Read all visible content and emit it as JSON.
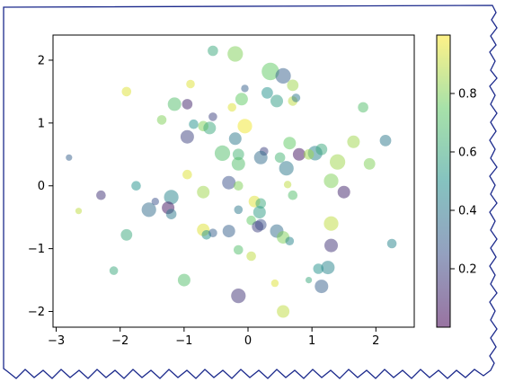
{
  "chart_data": {
    "type": "scatter",
    "title": "",
    "xlabel": "",
    "ylabel": "",
    "xlim": [
      -3.05,
      2.6
    ],
    "ylim": [
      -2.25,
      2.4
    ],
    "xticks": [
      -3,
      -2,
      -1,
      0,
      1,
      2
    ],
    "yticks": [
      -2,
      -1,
      0,
      1,
      2
    ],
    "grid": false,
    "alpha": 0.5,
    "colormap": "viridis",
    "colorbar": {
      "ticks": [
        0.2,
        0.4,
        0.6,
        0.8
      ],
      "range": [
        0.0,
        1.0
      ],
      "stops": [
        "#440154",
        "#3b528b",
        "#21918c",
        "#5ec962",
        "#fde725"
      ]
    },
    "points": [
      {
        "x": -0.55,
        "y": 2.15,
        "size": 0.35,
        "c": 0.6
      },
      {
        "x": -0.2,
        "y": 2.1,
        "size": 0.6,
        "c": 0.8
      },
      {
        "x": 0.35,
        "y": 1.82,
        "size": 0.7,
        "c": 0.75
      },
      {
        "x": 0.55,
        "y": 1.75,
        "size": 0.6,
        "c": 0.3
      },
      {
        "x": 0.7,
        "y": 1.6,
        "size": 0.4,
        "c": 0.85
      },
      {
        "x": -1.9,
        "y": 1.5,
        "size": 0.3,
        "c": 0.95
      },
      {
        "x": -0.9,
        "y": 1.62,
        "size": 0.25,
        "c": 0.95
      },
      {
        "x": -0.05,
        "y": 1.55,
        "size": 0.2,
        "c": 0.3
      },
      {
        "x": 0.3,
        "y": 1.48,
        "size": 0.4,
        "c": 0.5
      },
      {
        "x": 0.45,
        "y": 1.35,
        "size": 0.45,
        "c": 0.55
      },
      {
        "x": 0.7,
        "y": 1.35,
        "size": 0.3,
        "c": 0.9
      },
      {
        "x": 0.75,
        "y": 1.4,
        "size": 0.25,
        "c": 0.4
      },
      {
        "x": -0.1,
        "y": 1.38,
        "size": 0.45,
        "c": 0.75
      },
      {
        "x": -0.25,
        "y": 1.25,
        "size": 0.25,
        "c": 0.95
      },
      {
        "x": -1.15,
        "y": 1.3,
        "size": 0.5,
        "c": 0.7
      },
      {
        "x": -0.95,
        "y": 1.3,
        "size": 0.35,
        "c": 0.1
      },
      {
        "x": 1.8,
        "y": 1.25,
        "size": 0.35,
        "c": 0.7
      },
      {
        "x": -1.35,
        "y": 1.05,
        "size": 0.3,
        "c": 0.8
      },
      {
        "x": -0.55,
        "y": 1.1,
        "size": 0.25,
        "c": 0.2
      },
      {
        "x": -0.85,
        "y": 0.98,
        "size": 0.3,
        "c": 0.5
      },
      {
        "x": -0.7,
        "y": 0.95,
        "size": 0.35,
        "c": 0.8
      },
      {
        "x": -0.6,
        "y": 0.92,
        "size": 0.45,
        "c": 0.6
      },
      {
        "x": -0.05,
        "y": 0.95,
        "size": 0.55,
        "c": 0.98
      },
      {
        "x": -0.2,
        "y": 0.75,
        "size": 0.45,
        "c": 0.4
      },
      {
        "x": -0.95,
        "y": 0.78,
        "size": 0.5,
        "c": 0.2
      },
      {
        "x": 0.65,
        "y": 0.68,
        "size": 0.45,
        "c": 0.75
      },
      {
        "x": 1.65,
        "y": 0.7,
        "size": 0.45,
        "c": 0.85
      },
      {
        "x": 2.15,
        "y": 0.72,
        "size": 0.4,
        "c": 0.4
      },
      {
        "x": -0.4,
        "y": 0.52,
        "size": 0.6,
        "c": 0.7
      },
      {
        "x": -0.15,
        "y": 0.5,
        "size": 0.4,
        "c": 0.65
      },
      {
        "x": 0.25,
        "y": 0.55,
        "size": 0.25,
        "c": 0.2
      },
      {
        "x": 0.2,
        "y": 0.45,
        "size": 0.5,
        "c": 0.35
      },
      {
        "x": 0.5,
        "y": 0.45,
        "size": 0.35,
        "c": 0.65
      },
      {
        "x": 0.8,
        "y": 0.5,
        "size": 0.45,
        "c": 0.05
      },
      {
        "x": 1.05,
        "y": 0.52,
        "size": 0.55,
        "c": 0.45
      },
      {
        "x": 1.15,
        "y": 0.58,
        "size": 0.4,
        "c": 0.6
      },
      {
        "x": 0.95,
        "y": 0.5,
        "size": 0.35,
        "c": 0.85
      },
      {
        "x": -0.15,
        "y": 0.35,
        "size": 0.5,
        "c": 0.7
      },
      {
        "x": 1.4,
        "y": 0.38,
        "size": 0.6,
        "c": 0.85
      },
      {
        "x": 1.9,
        "y": 0.35,
        "size": 0.4,
        "c": 0.8
      },
      {
        "x": 0.6,
        "y": 0.28,
        "size": 0.55,
        "c": 0.4
      },
      {
        "x": 1.3,
        "y": 0.08,
        "size": 0.55,
        "c": 0.8
      },
      {
        "x": -1.75,
        "y": 0.0,
        "size": 0.3,
        "c": 0.5
      },
      {
        "x": -0.95,
        "y": 0.18,
        "size": 0.3,
        "c": 0.95
      },
      {
        "x": -0.3,
        "y": 0.05,
        "size": 0.5,
        "c": 0.25
      },
      {
        "x": -0.15,
        "y": 0.0,
        "size": 0.3,
        "c": 0.8
      },
      {
        "x": 0.62,
        "y": 0.02,
        "size": 0.2,
        "c": 0.9
      },
      {
        "x": 0.7,
        "y": -0.15,
        "size": 0.3,
        "c": 0.7
      },
      {
        "x": 1.5,
        "y": -0.1,
        "size": 0.45,
        "c": 0.1
      },
      {
        "x": -1.2,
        "y": -0.18,
        "size": 0.55,
        "c": 0.45
      },
      {
        "x": -0.7,
        "y": -0.1,
        "size": 0.45,
        "c": 0.85
      },
      {
        "x": -2.3,
        "y": -0.15,
        "size": 0.3,
        "c": 0.15
      },
      {
        "x": -1.45,
        "y": -0.25,
        "size": 0.2,
        "c": 0.25
      },
      {
        "x": 0.1,
        "y": -0.25,
        "size": 0.4,
        "c": 0.95
      },
      {
        "x": 0.2,
        "y": -0.28,
        "size": 0.35,
        "c": 0.6
      },
      {
        "x": -1.55,
        "y": -0.38,
        "size": 0.55,
        "c": 0.35
      },
      {
        "x": -1.25,
        "y": -0.35,
        "size": 0.45,
        "c": 0.05
      },
      {
        "x": -1.2,
        "y": -0.45,
        "size": 0.35,
        "c": 0.4
      },
      {
        "x": -0.15,
        "y": -0.38,
        "size": 0.25,
        "c": 0.4
      },
      {
        "x": 0.18,
        "y": -0.42,
        "size": 0.45,
        "c": 0.55
      },
      {
        "x": 0.05,
        "y": -0.55,
        "size": 0.3,
        "c": 0.75
      },
      {
        "x": 0.2,
        "y": -0.62,
        "size": 0.4,
        "c": 0.25
      },
      {
        "x": 1.3,
        "y": -0.6,
        "size": 0.55,
        "c": 0.9
      },
      {
        "x": -1.9,
        "y": -0.78,
        "size": 0.4,
        "c": 0.6
      },
      {
        "x": -0.7,
        "y": -0.7,
        "size": 0.45,
        "c": 0.95
      },
      {
        "x": -0.65,
        "y": -0.78,
        "size": 0.3,
        "c": 0.5
      },
      {
        "x": -0.55,
        "y": -0.75,
        "size": 0.25,
        "c": 0.3
      },
      {
        "x": -0.3,
        "y": -0.72,
        "size": 0.45,
        "c": 0.3
      },
      {
        "x": 0.15,
        "y": -0.65,
        "size": 0.4,
        "c": 0.2
      },
      {
        "x": 0.45,
        "y": -0.72,
        "size": 0.5,
        "c": 0.35
      },
      {
        "x": 0.55,
        "y": -0.82,
        "size": 0.45,
        "c": 0.8
      },
      {
        "x": 0.65,
        "y": -0.88,
        "size": 0.25,
        "c": 0.45
      },
      {
        "x": 1.3,
        "y": -0.95,
        "size": 0.5,
        "c": 0.15
      },
      {
        "x": 2.25,
        "y": -0.92,
        "size": 0.3,
        "c": 0.45
      },
      {
        "x": -2.65,
        "y": -0.4,
        "size": 0.15,
        "c": 0.9
      },
      {
        "x": -2.8,
        "y": 0.45,
        "size": 0.15,
        "c": 0.3
      },
      {
        "x": -2.1,
        "y": -1.35,
        "size": 0.25,
        "c": 0.6
      },
      {
        "x": -0.15,
        "y": -1.02,
        "size": 0.3,
        "c": 0.7
      },
      {
        "x": 0.05,
        "y": -1.12,
        "size": 0.3,
        "c": 0.9
      },
      {
        "x": 1.1,
        "y": -1.32,
        "size": 0.35,
        "c": 0.5
      },
      {
        "x": 1.25,
        "y": -1.3,
        "size": 0.5,
        "c": 0.45
      },
      {
        "x": -1.0,
        "y": -1.5,
        "size": 0.45,
        "c": 0.7
      },
      {
        "x": 0.42,
        "y": -1.55,
        "size": 0.2,
        "c": 0.95
      },
      {
        "x": 0.95,
        "y": -1.5,
        "size": 0.15,
        "c": 0.6
      },
      {
        "x": 1.15,
        "y": -1.6,
        "size": 0.5,
        "c": 0.3
      },
      {
        "x": -0.15,
        "y": -1.75,
        "size": 0.55,
        "c": 0.15
      },
      {
        "x": 0.55,
        "y": -2.0,
        "size": 0.45,
        "c": 0.9
      }
    ]
  }
}
